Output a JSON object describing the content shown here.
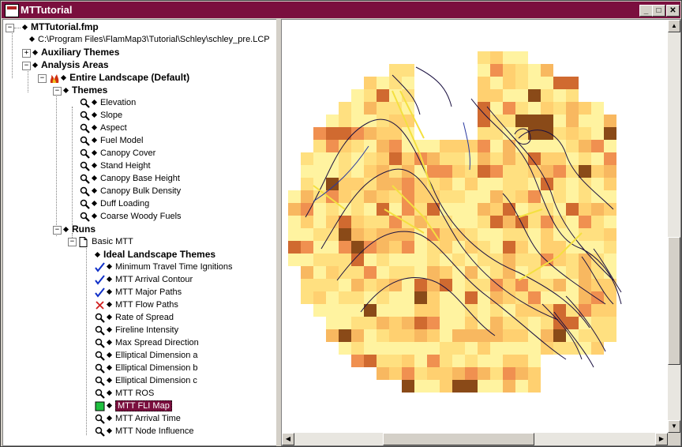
{
  "window": {
    "title": "MTTutorial"
  },
  "titlebar_buttons": {
    "minimize": "_",
    "maximize": "□",
    "close": "✕"
  },
  "tree": {
    "root": "MTTutorial.fmp",
    "landscape_file": "C:\\Program Files\\FlamMap3\\Tutorial\\Schley\\schley_pre.LCP",
    "auxiliary_themes": "Auxiliary Themes",
    "analysis_areas": "Analysis Areas",
    "entire_landscape": "Entire Landscape (Default)",
    "themes_header": "Themes",
    "themes": [
      "Elevation",
      "Slope",
      "Aspect",
      "Fuel Model",
      "Canopy Cover",
      "Stand Height",
      "Canopy Base Height",
      "Canopy Bulk Density",
      "Duff Loading",
      "Coarse Woody Fuels"
    ],
    "runs_header": "Runs",
    "run_name": "Basic MTT",
    "ideal_header": "Ideal Landscape Themes",
    "outputs": [
      {
        "label": "Minimum Travel Time Ignitions",
        "icon": "checkmark-icon"
      },
      {
        "label": "MTT Arrival Contour",
        "icon": "checkmark-icon"
      },
      {
        "label": "MTT Major Paths",
        "icon": "checkmark-icon"
      },
      {
        "label": "MTT Flow Paths",
        "icon": "x-mark-icon"
      },
      {
        "label": "Rate of Spread",
        "icon": "magnifier-icon"
      },
      {
        "label": "Fireline Intensity",
        "icon": "magnifier-icon"
      },
      {
        "label": "Max Spread Direction",
        "icon": "magnifier-icon"
      },
      {
        "label": "Elliptical Dimension a",
        "icon": "magnifier-icon"
      },
      {
        "label": "Elliptical Dimension b",
        "icon": "magnifier-icon"
      },
      {
        "label": "Elliptical Dimension c",
        "icon": "magnifier-icon"
      },
      {
        "label": "MTT ROS",
        "icon": "magnifier-icon"
      },
      {
        "label": "MTT FLI Map",
        "icon": "green-square-icon",
        "selected": true
      },
      {
        "label": "MTT Arrival Time",
        "icon": "magnifier-icon"
      },
      {
        "label": "MTT Node Influence",
        "icon": "magnifier-icon"
      }
    ]
  },
  "colors": {
    "title_bar": "#7a0f3e",
    "selection": "#7a0f3e",
    "check": "#1030c8",
    "xmark": "#d02020"
  }
}
